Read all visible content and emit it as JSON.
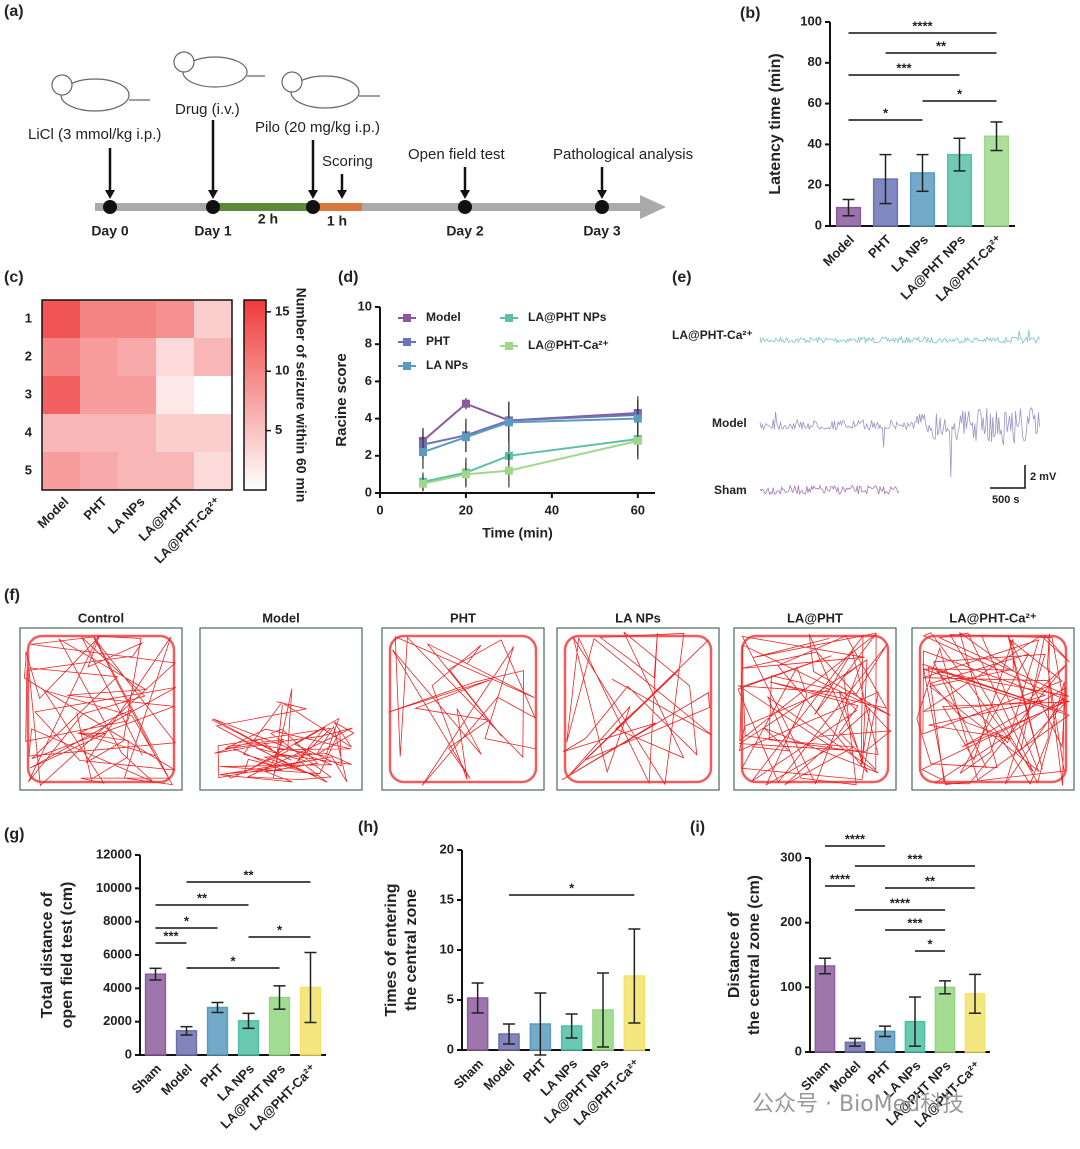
{
  "timeline": {
    "label": "(a)",
    "events": [
      "LiCl (3 mmol/kg i.p.)",
      "Drug (i.v.)",
      "Pilo (20 mg/kg i.p.)",
      "Scoring",
      "Open field test",
      "Pathological analysis"
    ],
    "days": [
      "Day 0",
      "Day 1",
      "Day 2",
      "Day 3"
    ],
    "durations": [
      "2 h",
      "1 h"
    ]
  },
  "eeg": {
    "label": "(e)",
    "traces": [
      "LA@PHT-Ca²⁺",
      "Model",
      "Sham"
    ],
    "scale_voltage": "2 mV",
    "scale_time": "500 s"
  },
  "trajectories": {
    "label": "(f)",
    "titles": [
      "Control",
      "Model",
      "PHT",
      "LA NPs",
      "LA@PHT",
      "LA@PHT-Ca²⁺"
    ]
  },
  "watermark": "公众号 · BioMed科技",
  "chart_data": [
    {
      "type": "bar",
      "label": "(b)",
      "ylabel": [
        "Latency time (min)"
      ],
      "categories": [
        "Model",
        "PHT",
        "LA NPs",
        "LA@PHT NPs",
        "LA@PHT-Ca²⁺"
      ],
      "values": [
        9,
        23,
        26,
        35,
        44
      ],
      "errors": [
        4,
        12,
        9,
        8,
        7
      ],
      "colors": [
        "#8b5a9e",
        "#6b74b5",
        "#5b9bbf",
        "#5cc0a8",
        "#9fd88a"
      ],
      "ylim": [
        0,
        100
      ],
      "yticks": [
        0,
        20,
        40,
        60,
        80,
        100
      ],
      "significance": [
        "****",
        "**",
        "***",
        "*",
        "*"
      ]
    },
    {
      "type": "heatmap",
      "label": "(c)",
      "rows": [
        "1",
        "2",
        "3",
        "4",
        "5"
      ],
      "categories": [
        "Model",
        "PHT",
        "LA NPs",
        "LA@PHT",
        "LA@PHT-Ca²⁺"
      ],
      "values": [
        [
          14,
          10,
          10,
          9,
          4
        ],
        [
          10,
          8,
          7,
          3,
          6
        ],
        [
          13,
          8,
          8,
          2,
          0
        ],
        [
          6,
          6,
          6,
          4,
          4
        ],
        [
          8,
          7,
          6,
          6,
          3
        ]
      ],
      "clim": [
        0,
        16
      ],
      "colorbar_ticks": [
        5,
        10,
        15
      ],
      "colorbar_label": "Number of seizure within 60 min",
      "colors": [
        "#ffffff",
        "#ef3b3b"
      ]
    },
    {
      "type": "line",
      "label": "(d)",
      "xlabel": "Time (min)",
      "ylabel": "Racine score",
      "x": [
        10,
        20,
        30,
        60
      ],
      "xlim": [
        0,
        64
      ],
      "xticks": [
        0,
        20,
        40,
        60
      ],
      "ylim": [
        0,
        10
      ],
      "yticks": [
        0,
        2,
        4,
        6,
        8,
        10
      ],
      "series": [
        {
          "name": "Model",
          "color": "#8b5a9e",
          "values": [
            2.8,
            4.8,
            3.9,
            4.3
          ],
          "errors": [
            0.7,
            0.3,
            1.0,
            0.9
          ]
        },
        {
          "name": "PHT",
          "color": "#6b74b5",
          "values": [
            2.6,
            3.1,
            3.9,
            4.2
          ],
          "errors": [
            0.8,
            0.9,
            1.0,
            0.8
          ]
        },
        {
          "name": "LA NPs",
          "color": "#5b9bbf",
          "values": [
            2.2,
            3.0,
            3.8,
            4.0
          ],
          "errors": [
            0.9,
            0.8,
            1.1,
            0.9
          ]
        },
        {
          "name": "LA@PHT NPs",
          "color": "#5cc0a8",
          "values": [
            0.6,
            1.1,
            2.0,
            2.9
          ],
          "errors": [
            0.5,
            0.8,
            1.0,
            0.9
          ]
        },
        {
          "name": "LA@PHT-Ca²⁺",
          "color": "#9fd88a",
          "values": [
            0.5,
            1.0,
            1.2,
            2.8
          ],
          "errors": [
            0.4,
            0.6,
            0.9,
            1.0
          ]
        }
      ]
    },
    {
      "type": "bar",
      "label": "(g)",
      "ylabel": [
        "Total distance of",
        "open field test (cm)"
      ],
      "categories": [
        "Sham",
        "Model",
        "PHT",
        "LA NPs",
        "LA@PHT NPs",
        "LA@PHT-Ca²⁺"
      ],
      "values": [
        4850,
        1450,
        2850,
        2050,
        3450,
        4050
      ],
      "errors": [
        350,
        250,
        300,
        450,
        700,
        2100
      ],
      "colors": [
        "#8d5e9e",
        "#6c6fae",
        "#5b9bc0",
        "#4fbfa3",
        "#93d67f",
        "#f3e36a"
      ],
      "ylim": [
        0,
        12000
      ],
      "yticks": [
        0,
        2000,
        4000,
        6000,
        8000,
        10000,
        12000
      ],
      "significance": [
        "***",
        "*",
        "**",
        "**",
        "*",
        "*"
      ]
    },
    {
      "type": "bar",
      "label": "(h)",
      "ylabel": [
        "Times of entering",
        "the central zone"
      ],
      "categories": [
        "Sham",
        "Model",
        "PHT",
        "LA NPs",
        "LA@PHT NPs",
        "LA@PHT-Ca²⁺"
      ],
      "values": [
        5.2,
        1.6,
        2.6,
        2.4,
        4.0,
        7.4
      ],
      "errors": [
        1.5,
        1.0,
        3.1,
        1.2,
        3.7,
        4.7
      ],
      "colors": [
        "#8d5e9e",
        "#6c6fae",
        "#5b9bc0",
        "#4fbfa3",
        "#93d67f",
        "#f3e36a"
      ],
      "ylim": [
        0,
        20
      ],
      "yticks": [
        0,
        5,
        10,
        15,
        20
      ],
      "significance": [
        "*"
      ]
    },
    {
      "type": "bar",
      "label": "(i)",
      "ylabel": [
        "Distance of",
        "the central zone (cm)"
      ],
      "categories": [
        "Sham",
        "Model",
        "PHT",
        "LA NPs",
        "LA@PHT NPs",
        "LA@PHT-Ca²⁺"
      ],
      "values": [
        133,
        15,
        32,
        47,
        100,
        90
      ],
      "errors": [
        12,
        6,
        8,
        38,
        10,
        30
      ],
      "colors": [
        "#8d5e9e",
        "#6c6fae",
        "#5b9bc0",
        "#4fbfa3",
        "#93d67f",
        "#f3e36a"
      ],
      "ylim": [
        0,
        300
      ],
      "yticks": [
        0,
        100,
        200,
        300
      ],
      "significance": [
        "****",
        "***",
        "****",
        "**",
        "****",
        "***",
        "*"
      ]
    }
  ]
}
